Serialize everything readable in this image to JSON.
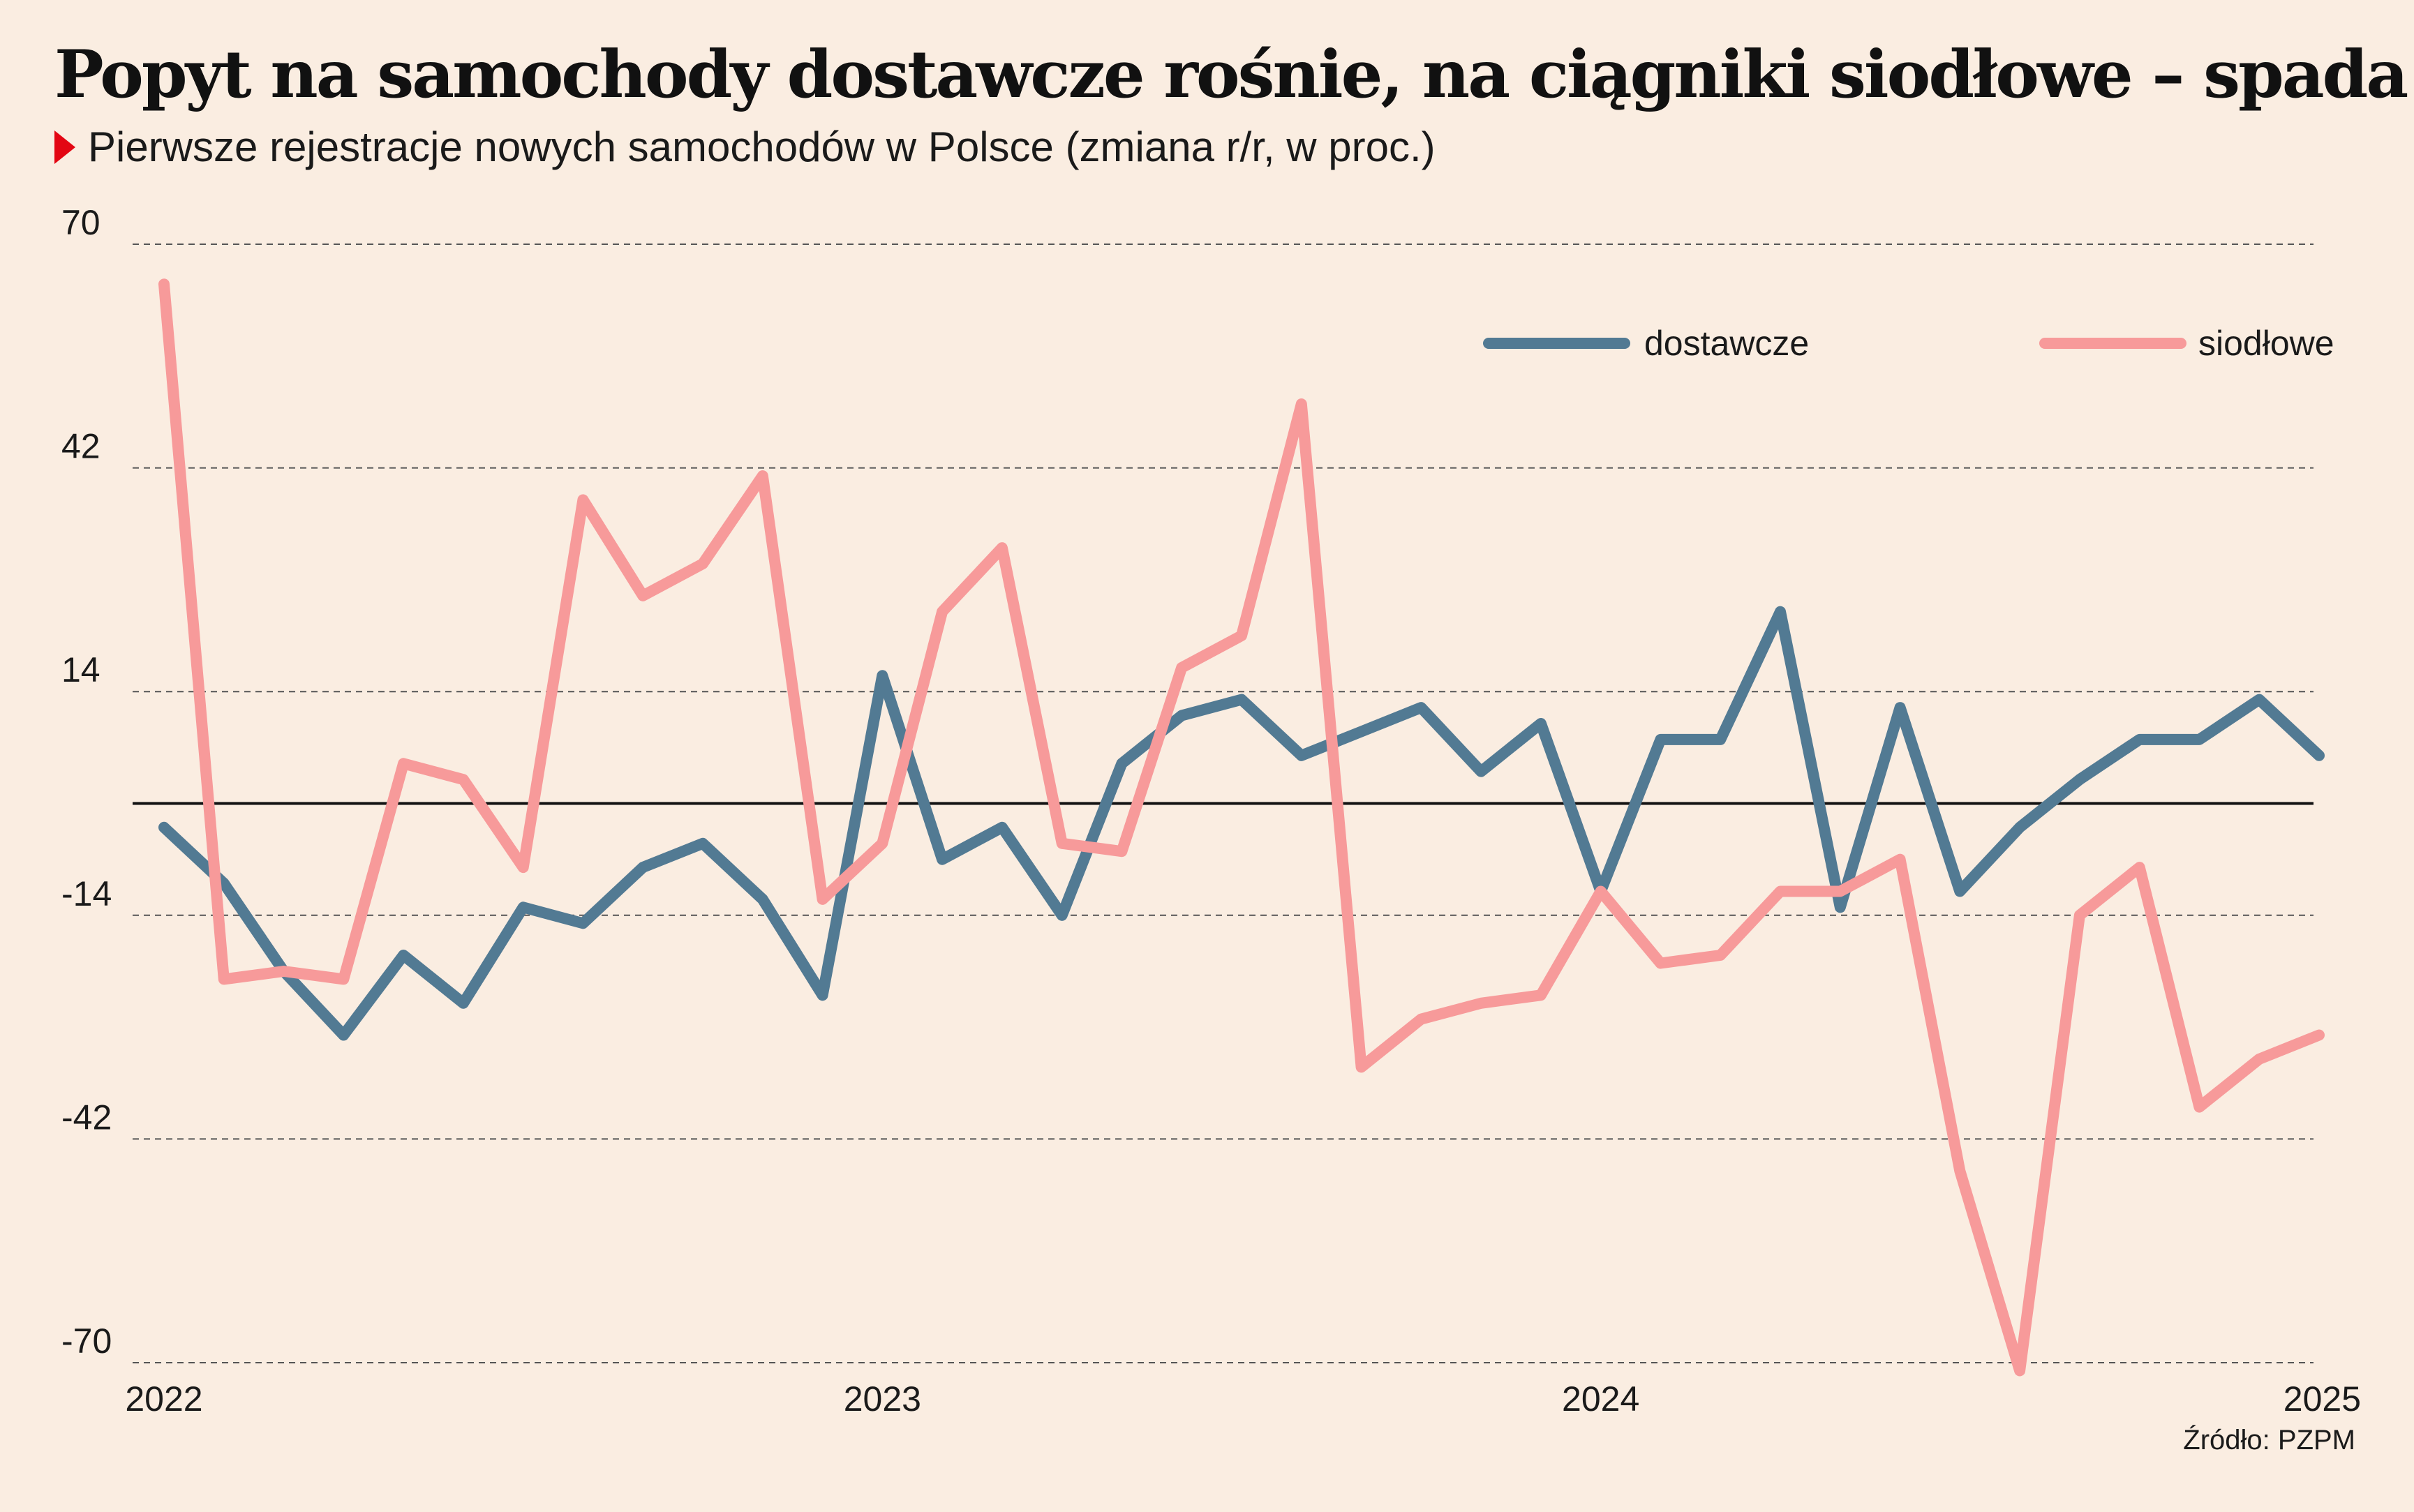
{
  "header": {
    "title": "Popyt na samochody dostawcze rośnie, na ciągniki siodłowe – spada",
    "subtitle": "Pierwsze rejestracje nowych samochodów w Polsce (zmiana r/r, w proc.)"
  },
  "footer": {
    "source": "Źródło: PZPM"
  },
  "colors": {
    "dostawcze": "#527a93",
    "siodlowe": "#f79a9a",
    "accent": "#e30613",
    "background": "#faede1"
  },
  "chart_data": {
    "type": "line",
    "title": "Popyt na samochody dostawcze rośnie, na ciągniki siodłowe – spada",
    "subtitle": "Pierwsze rejestracje nowych samochodów w Polsce (zmiana r/r, w proc.)",
    "xlabel": "",
    "ylabel": "",
    "x_tick_labels": [
      "2022",
      "2023",
      "2024",
      "2025"
    ],
    "y_ticks": [
      70,
      42,
      14,
      -14,
      -42,
      -70
    ],
    "y_tick_labels": [
      "70",
      "42",
      "14",
      "-14",
      "-42",
      "-70"
    ],
    "ylim": [
      -70,
      70
    ],
    "grid": true,
    "zero_line": true,
    "legend_position": "top-right",
    "x": [
      "2022-01",
      "2022-02",
      "2022-03",
      "2022-04",
      "2022-05",
      "2022-06",
      "2022-07",
      "2022-08",
      "2022-09",
      "2022-10",
      "2022-11",
      "2022-12",
      "2023-01",
      "2023-02",
      "2023-03",
      "2023-04",
      "2023-05",
      "2023-06",
      "2023-07",
      "2023-08",
      "2023-09",
      "2023-10",
      "2023-11",
      "2023-12",
      "2024-01",
      "2024-02",
      "2024-03",
      "2024-04",
      "2024-05",
      "2024-06",
      "2024-07",
      "2024-08",
      "2024-09",
      "2024-10",
      "2024-11",
      "2024-12",
      "2025-01"
    ],
    "series": [
      {
        "name": "dostawcze",
        "color": "#527a93",
        "values": [
          -3,
          -10,
          -21,
          -29,
          -19,
          -25,
          -13,
          -15,
          -8,
          -5,
          -12,
          -24,
          16,
          -7,
          -3,
          -14,
          5,
          11,
          13,
          6,
          9,
          12,
          4,
          10,
          -11,
          8,
          8,
          24,
          -13,
          12,
          -11,
          -3,
          3,
          8,
          8,
          13,
          6
        ]
      },
      {
        "name": "siodłowe",
        "color": "#f79a9a",
        "values": [
          65,
          -22,
          -21,
          -22,
          5,
          3,
          -8,
          38,
          26,
          30,
          41,
          -12,
          -5,
          24,
          32,
          -5,
          -6,
          17,
          21,
          50,
          -33,
          -27,
          -25,
          -24,
          -11,
          -20,
          -19,
          -11,
          -11,
          -7,
          -46,
          -71,
          -14,
          -8,
          -38,
          -32,
          -29
        ]
      }
    ]
  }
}
